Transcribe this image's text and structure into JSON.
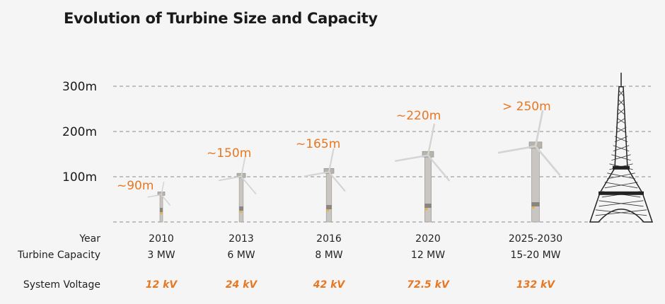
{
  "title": "Evolution of Turbine Size and Capacity",
  "chart_data": {
    "type": "bar",
    "title": "Evolution of Turbine Size and Capacity",
    "ylabel": "",
    "ylim": [
      0,
      300
    ],
    "yticks": [
      "100m",
      "200m",
      "300m"
    ],
    "grid": true,
    "categories": [
      "2010",
      "2013",
      "2016",
      "2020",
      "2025-2030"
    ],
    "values": [
      90,
      150,
      165,
      220,
      250
    ],
    "data_labels": [
      "~90m",
      "~150m",
      "~165m",
      "~220m",
      "> 250m"
    ],
    "reference": {
      "name": "Eiffel Tower",
      "height": 330
    }
  },
  "table": {
    "row_labels": {
      "year": "Year",
      "capacity": "Turbine Capacity",
      "voltage": "System Voltage"
    },
    "columns": [
      {
        "year": "2010",
        "capacity": "3 MW",
        "voltage": "12 kV"
      },
      {
        "year": "2013",
        "capacity": "6 MW",
        "voltage": "24 kV"
      },
      {
        "year": "2016",
        "capacity": "8 MW",
        "voltage": "42 kV"
      },
      {
        "year": "2020",
        "capacity": "12 MW",
        "voltage": "72.5 kV"
      },
      {
        "year": "2025-2030",
        "capacity": "15-20 MW",
        "voltage": "132 kV"
      }
    ]
  },
  "colors": {
    "accent": "#e87722",
    "grid": "#8a8a8a",
    "text": "#1a1a1a"
  }
}
